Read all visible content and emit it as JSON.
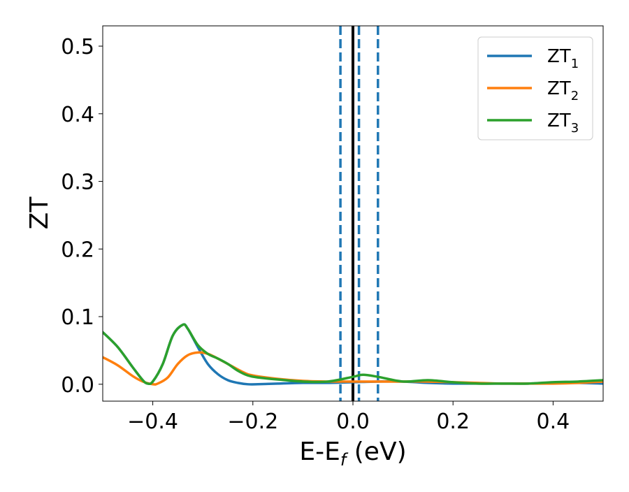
{
  "chart_data": {
    "type": "line",
    "xlabel": "E-E",
    "xlabel_sub": "f",
    "xlabel_unit": " (eV)",
    "ylabel": "ZT",
    "xlim": [
      -0.5,
      0.5
    ],
    "ylim": [
      -0.025,
      0.53
    ],
    "xticks": [
      -0.4,
      -0.2,
      0.0,
      0.2,
      0.4
    ],
    "xtick_labels": [
      "−0.4",
      "−0.2",
      "0.0",
      "0.2",
      "0.4"
    ],
    "yticks": [
      0.0,
      0.1,
      0.2,
      0.3,
      0.4,
      0.5
    ],
    "ytick_labels": [
      "0.0",
      "0.1",
      "0.2",
      "0.3",
      "0.4",
      "0.5"
    ],
    "grid": false,
    "legend_position": "top-right",
    "vertical_lines": [
      {
        "x": 0.0,
        "style": "solid",
        "color": "#000000"
      },
      {
        "x": -0.025,
        "style": "dashed",
        "color": "#1f77b4"
      },
      {
        "x": 0.012,
        "style": "dashed",
        "color": "#1f77b4"
      },
      {
        "x": 0.05,
        "style": "dashed",
        "color": "#1f77b4"
      }
    ],
    "series": [
      {
        "name": "ZT",
        "name_sub": "1",
        "color": "#1f77b4",
        "x": [
          -0.5,
          -0.47,
          -0.44,
          -0.42,
          -0.41,
          -0.4,
          -0.38,
          -0.36,
          -0.34,
          -0.33,
          -0.31,
          -0.29,
          -0.27,
          -0.25,
          -0.23,
          -0.21,
          -0.19,
          -0.15,
          -0.1,
          -0.05,
          0.0,
          0.05,
          0.1,
          0.15,
          0.2,
          0.25,
          0.3,
          0.35,
          0.4,
          0.45,
          0.5
        ],
        "y": [
          0.077,
          0.055,
          0.025,
          0.006,
          0.001,
          0.004,
          0.03,
          0.072,
          0.088,
          0.082,
          0.055,
          0.03,
          0.015,
          0.006,
          0.002,
          0.0,
          0.0,
          0.001,
          0.002,
          0.002,
          0.003,
          0.004,
          0.004,
          0.002,
          0.001,
          0.001,
          0.001,
          0.001,
          0.002,
          0.002,
          0.001
        ]
      },
      {
        "name": "ZT",
        "name_sub": "2",
        "color": "#ff7f0e",
        "x": [
          -0.5,
          -0.47,
          -0.44,
          -0.42,
          -0.4,
          -0.39,
          -0.37,
          -0.35,
          -0.33,
          -0.31,
          -0.29,
          -0.27,
          -0.25,
          -0.22,
          -0.2,
          -0.15,
          -0.1,
          -0.05,
          0.0,
          0.05,
          0.1,
          0.15,
          0.2,
          0.25,
          0.3,
          0.35,
          0.4,
          0.45,
          0.5
        ],
        "y": [
          0.04,
          0.028,
          0.012,
          0.004,
          0.0,
          0.001,
          0.01,
          0.03,
          0.043,
          0.047,
          0.045,
          0.038,
          0.03,
          0.018,
          0.013,
          0.008,
          0.005,
          0.004,
          0.004,
          0.004,
          0.004,
          0.004,
          0.003,
          0.002,
          0.001,
          0.001,
          0.001,
          0.002,
          0.004
        ]
      },
      {
        "name": "ZT",
        "name_sub": "3",
        "color": "#2ca02c",
        "x": [
          -0.5,
          -0.47,
          -0.44,
          -0.42,
          -0.41,
          -0.4,
          -0.38,
          -0.36,
          -0.34,
          -0.33,
          -0.31,
          -0.29,
          -0.27,
          -0.25,
          -0.23,
          -0.21,
          -0.19,
          -0.15,
          -0.1,
          -0.05,
          0.0,
          0.02,
          0.05,
          0.1,
          0.15,
          0.2,
          0.25,
          0.3,
          0.35,
          0.4,
          0.45,
          0.5
        ],
        "y": [
          0.077,
          0.055,
          0.025,
          0.006,
          0.001,
          0.004,
          0.03,
          0.072,
          0.088,
          0.082,
          0.058,
          0.045,
          0.038,
          0.03,
          0.02,
          0.013,
          0.01,
          0.007,
          0.004,
          0.004,
          0.011,
          0.014,
          0.011,
          0.004,
          0.006,
          0.003,
          0.001,
          0.001,
          0.001,
          0.003,
          0.004,
          0.006
        ]
      }
    ]
  }
}
